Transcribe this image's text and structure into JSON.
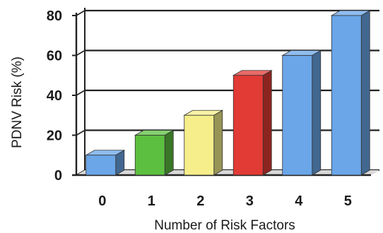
{
  "chart_data": {
    "type": "bar",
    "title": "",
    "xlabel": "Number of Risk Factors",
    "ylabel": "PDNV Risk (%)",
    "categories": [
      "0",
      "1",
      "2",
      "3",
      "4",
      "5"
    ],
    "values": [
      10,
      20,
      30,
      50,
      60,
      80
    ],
    "ylim": [
      0,
      80
    ],
    "yticks": [
      0,
      20,
      40,
      60,
      80
    ],
    "grid": true,
    "style": "3d",
    "bar_colors": [
      "#6aa6e8",
      "#5cbf3f",
      "#f5ee8a",
      "#e23a34",
      "#6aa6e8",
      "#6aa6e8"
    ]
  }
}
